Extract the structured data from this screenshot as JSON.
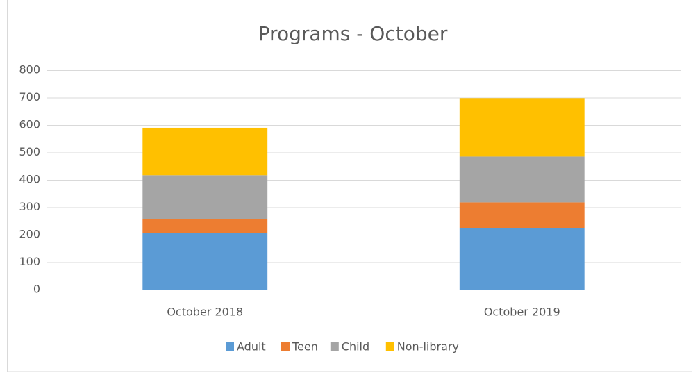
{
  "chart_data": {
    "type": "stacked_bar",
    "title": "Programs - October",
    "categories": [
      "October 2018",
      "October 2019"
    ],
    "series": [
      {
        "name": "Adult",
        "color": "#5b9bd5",
        "values": [
          207,
          223
        ]
      },
      {
        "name": "Teen",
        "color": "#ed7d31",
        "values": [
          50,
          95
        ]
      },
      {
        "name": "Child",
        "color": "#a5a5a5",
        "values": [
          160,
          167
        ]
      },
      {
        "name": "Non-library",
        "color": "#ffc000",
        "values": [
          173,
          213
        ]
      }
    ],
    "ylim": [
      0,
      800
    ],
    "yticks": [
      0,
      100,
      200,
      300,
      400,
      500,
      600,
      700,
      800
    ],
    "grid": true,
    "legend": "bottom"
  }
}
